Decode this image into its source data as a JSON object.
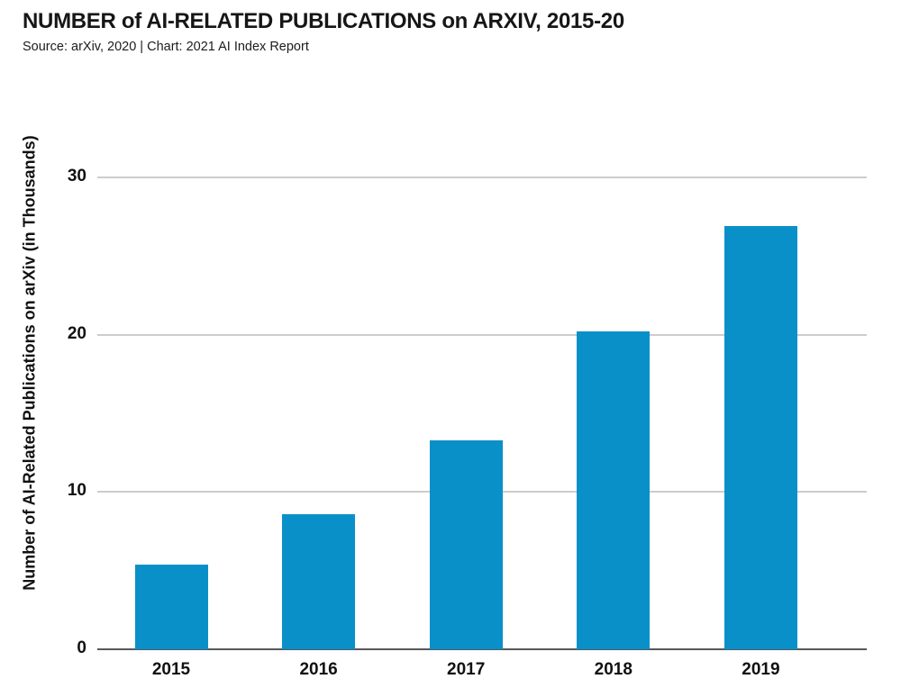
{
  "header": {
    "title": "NUMBER of AI-RELATED PUBLICATIONS on ARXIV, 2015-20",
    "source_line": "Source: arXiv, 2020 | Chart: 2021 AI Index Report"
  },
  "chart_data": {
    "type": "bar",
    "title": "NUMBER of AI-RELATED PUBLICATIONS on ARXIV, 2015-20",
    "subtitle": "Source: arXiv, 2020 | Chart: 2021 AI Index Report",
    "categories": [
      "2015",
      "2016",
      "2017",
      "2018",
      "2019"
    ],
    "values": [
      5.4,
      8.6,
      13.3,
      20.2,
      26.9
    ],
    "xlabel": "",
    "ylabel": "Number of AI-Related Publications on arXiv (in Thousands)",
    "yticks": [
      0,
      10,
      20,
      30
    ],
    "ylim": [
      0,
      35.8
    ],
    "grid": "horizontal",
    "legend": "none",
    "colors": {
      "bar": "#0a90c9",
      "gridline": "#cccccc",
      "axis_line": "#58595b",
      "text": "#111111"
    }
  }
}
